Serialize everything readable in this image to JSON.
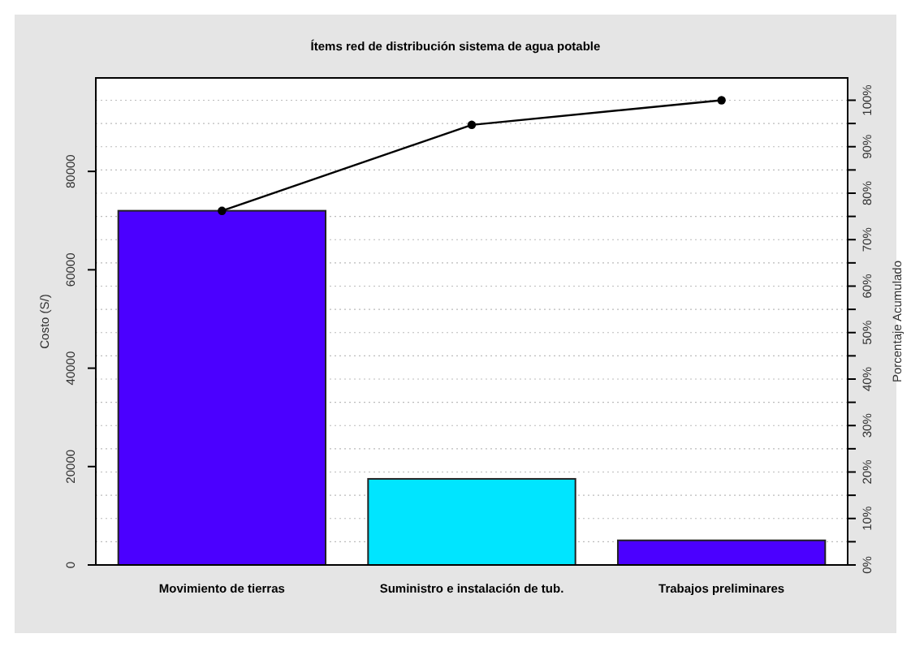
{
  "chart_data": {
    "type": "bar",
    "title": "Ítems red de distribución sistema de agua potable",
    "ylabel": "Costo (S/)",
    "y2label": "Porcentaje Acumulado",
    "categories": [
      "Movimiento de tierras",
      "Suministro e instalación de tub.",
      "Trabajos preliminares"
    ],
    "series": [
      {
        "colors": [
          "#4b00ff",
          "#00e5ff",
          "#4b00ff"
        ],
        "values": [
          72000,
          17500,
          5000
        ]
      },
      {
        "type": "line",
        "axis": "y2",
        "color": "#000000",
        "values": [
          76.2,
          94.7,
          100
        ],
        "marker": "circle"
      }
    ],
    "ylim": [
      0,
      99000
    ],
    "yticks": [
      0,
      20000,
      40000,
      60000,
      80000
    ],
    "y2lim": [
      0,
      104.8
    ],
    "y2ticks": [
      {
        "value": 0,
        "label": "0%"
      },
      {
        "value": 5,
        "label": null
      },
      {
        "value": 10,
        "label": "10%"
      },
      {
        "value": 15,
        "label": null
      },
      {
        "value": 20,
        "label": "20%"
      },
      {
        "value": 25,
        "label": null
      },
      {
        "value": 30,
        "label": "30%"
      },
      {
        "value": 35,
        "label": null
      },
      {
        "value": 40,
        "label": "40%"
      },
      {
        "value": 45,
        "label": null
      },
      {
        "value": 50,
        "label": "50%"
      },
      {
        "value": 55,
        "label": null
      },
      {
        "value": 60,
        "label": "60%"
      },
      {
        "value": 65,
        "label": null
      },
      {
        "value": 70,
        "label": "70%"
      },
      {
        "value": 75,
        "label": null
      },
      {
        "value": 80,
        "label": "80%"
      },
      {
        "value": 85,
        "label": null
      },
      {
        "value": 90,
        "label": "90%"
      },
      {
        "value": 95,
        "label": null
      },
      {
        "value": 100,
        "label": "100%"
      }
    ],
    "grid": true
  }
}
